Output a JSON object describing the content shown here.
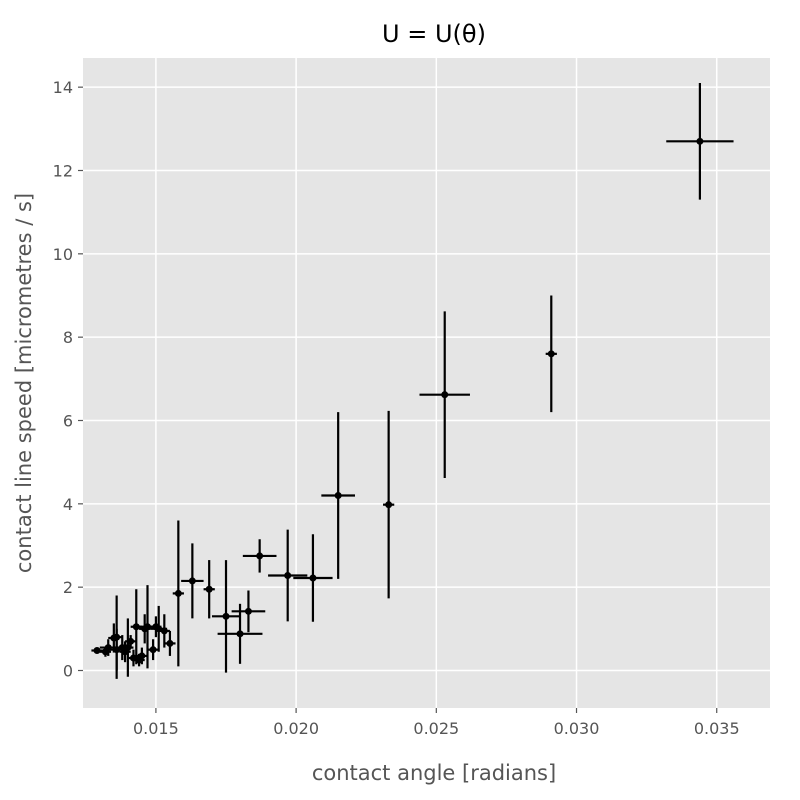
{
  "chart_data": {
    "type": "scatter",
    "title": "U = U(θ)",
    "xlabel": "contact angle [radians]",
    "ylabel": "contact line speed [micrometres / s]",
    "xlim": [
      0.0124,
      0.0369
    ],
    "ylim": [
      -0.9,
      14.7
    ],
    "xticks": [
      0.015,
      0.02,
      0.025,
      0.03,
      0.035
    ],
    "xtick_labels": [
      "0.015",
      "0.020",
      "0.025",
      "0.030",
      "0.035"
    ],
    "yticks": [
      0,
      2,
      4,
      6,
      8,
      10,
      12,
      14
    ],
    "ytick_labels": [
      "0",
      "2",
      "4",
      "6",
      "8",
      "10",
      "12",
      "14"
    ],
    "grid": true,
    "background": "#e5e5e5",
    "grid_color": "#ffffff",
    "marker_color": "#000000",
    "points": [
      {
        "x": 0.0129,
        "y": 0.48,
        "xerr": 0.0002,
        "yerr": 0.06
      },
      {
        "x": 0.0132,
        "y": 0.45,
        "xerr": 0.0002,
        "yerr": 0.12
      },
      {
        "x": 0.0133,
        "y": 0.55,
        "xerr": 0.0003,
        "yerr": 0.2
      },
      {
        "x": 0.0135,
        "y": 0.78,
        "xerr": 0.0002,
        "yerr": 0.35
      },
      {
        "x": 0.0136,
        "y": 0.5,
        "xerr": 0.0003,
        "yerr": 0.5
      },
      {
        "x": 0.0136,
        "y": 0.8,
        "xerr": 0.0002,
        "yerr": 1.0
      },
      {
        "x": 0.0138,
        "y": 0.55,
        "xerr": 0.0002,
        "yerr": 0.3
      },
      {
        "x": 0.0139,
        "y": 0.45,
        "xerr": 0.0002,
        "yerr": 0.25
      },
      {
        "x": 0.014,
        "y": 0.55,
        "xerr": 0.0002,
        "yerr": 0.7
      },
      {
        "x": 0.0141,
        "y": 0.7,
        "xerr": 0.0002,
        "yerr": 0.15
      },
      {
        "x": 0.0142,
        "y": 0.3,
        "xerr": 0.0002,
        "yerr": 0.2
      },
      {
        "x": 0.0143,
        "y": 1.05,
        "xerr": 0.0002,
        "yerr": 0.9
      },
      {
        "x": 0.0144,
        "y": 0.25,
        "xerr": 0.0002,
        "yerr": 0.15
      },
      {
        "x": 0.0145,
        "y": 0.35,
        "xerr": 0.0002,
        "yerr": 0.2
      },
      {
        "x": 0.0146,
        "y": 1.0,
        "xerr": 0.0002,
        "yerr": 0.35
      },
      {
        "x": 0.0147,
        "y": 1.05,
        "xerr": 0.0003,
        "yerr": 1.0
      },
      {
        "x": 0.0149,
        "y": 0.5,
        "xerr": 0.0002,
        "yerr": 0.25
      },
      {
        "x": 0.015,
        "y": 1.05,
        "xerr": 0.0002,
        "yerr": 0.25
      },
      {
        "x": 0.0151,
        "y": 1.0,
        "xerr": 0.0003,
        "yerr": 0.55
      },
      {
        "x": 0.0153,
        "y": 0.95,
        "xerr": 0.0002,
        "yerr": 0.4
      },
      {
        "x": 0.0155,
        "y": 0.65,
        "xerr": 0.0002,
        "yerr": 0.3
      },
      {
        "x": 0.0158,
        "y": 1.85,
        "xerr": 0.0002,
        "yerr": 1.75
      },
      {
        "x": 0.0163,
        "y": 2.15,
        "xerr": 0.0004,
        "yerr": 0.9
      },
      {
        "x": 0.0169,
        "y": 1.95,
        "xerr": 0.0002,
        "yerr": 0.7
      },
      {
        "x": 0.0175,
        "y": 1.3,
        "xerr": 0.0005,
        "yerr": 1.35
      },
      {
        "x": 0.018,
        "y": 0.88,
        "xerr": 0.0008,
        "yerr": 0.72
      },
      {
        "x": 0.0183,
        "y": 1.42,
        "xerr": 0.0006,
        "yerr": 0.5
      },
      {
        "x": 0.0187,
        "y": 2.75,
        "xerr": 0.0006,
        "yerr": 0.4
      },
      {
        "x": 0.0197,
        "y": 2.28,
        "xerr": 0.0007,
        "yerr": 1.1
      },
      {
        "x": 0.0206,
        "y": 2.22,
        "xerr": 0.0007,
        "yerr": 1.05
      },
      {
        "x": 0.0215,
        "y": 4.2,
        "xerr": 0.0006,
        "yerr": 2.0
      },
      {
        "x": 0.0233,
        "y": 3.98,
        "xerr": 0.0002,
        "yerr": 2.25
      },
      {
        "x": 0.0253,
        "y": 6.62,
        "xerr": 0.0009,
        "yerr": 2.0
      },
      {
        "x": 0.0291,
        "y": 7.6,
        "xerr": 0.0002,
        "yerr": 1.4
      },
      {
        "x": 0.0344,
        "y": 12.7,
        "xerr": 0.0012,
        "yerr": 1.4
      }
    ]
  }
}
